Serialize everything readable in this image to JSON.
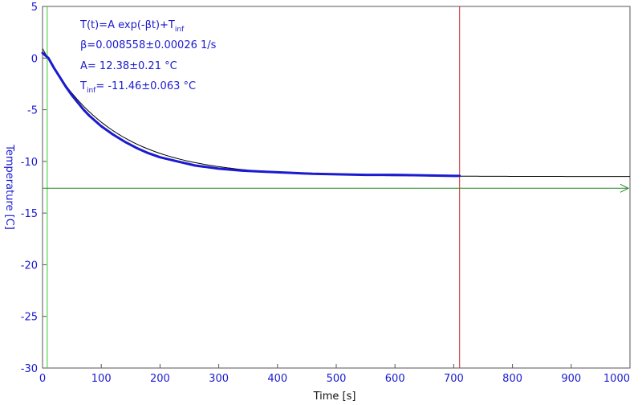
{
  "colors": {
    "data": "#1a1ad0",
    "fit": "#000000",
    "start_marker": "#33cc33",
    "end_marker": "#cc2222",
    "asymptote": "#228822",
    "frame": "#555555"
  },
  "annotations": {
    "model_main": "T(t)=A exp(-βt)+T",
    "model_sub": "inf",
    "beta": "β=0.008558±0.00026 1/s",
    "amplitude": "A= 12.38±0.21 °C",
    "tinf_main": "T",
    "tinf_sub": "inf",
    "tinf_rest": "= -11.46±0.063 °C"
  },
  "chart_data": {
    "type": "line",
    "xlabel": "Time [s]",
    "ylabel": "Temperature [C]",
    "xlim": [
      0,
      1000
    ],
    "ylim": [
      -30,
      5
    ],
    "xticks": [
      "0",
      "100",
      "200",
      "300",
      "400",
      "500",
      "600",
      "700",
      "800",
      "900",
      "1000"
    ],
    "yticks": [
      "5",
      "0",
      "-5",
      "-10",
      "-15",
      "-20",
      "-25",
      "-30"
    ],
    "grid": false,
    "series": [],
    "data_curve": {
      "x": [
        0,
        10,
        20,
        30,
        40,
        50,
        60,
        70,
        80,
        100,
        120,
        140,
        160,
        180,
        200,
        230,
        260,
        300,
        340,
        380,
        420,
        460,
        500,
        550,
        600,
        650,
        700,
        710
      ],
      "y": [
        0.5,
        0.0,
        -1.0,
        -1.9,
        -2.8,
        -3.6,
        -4.3,
        -5.0,
        -5.6,
        -6.6,
        -7.4,
        -8.1,
        -8.7,
        -9.2,
        -9.6,
        -10.0,
        -10.4,
        -10.7,
        -10.9,
        -11.0,
        -11.1,
        -11.2,
        -11.25,
        -11.3,
        -11.3,
        -11.35,
        -11.4,
        -11.4
      ]
    },
    "fit_curve": {
      "A": 12.38,
      "beta": 0.008558,
      "T_inf": -11.46,
      "x_range": [
        0,
        1000
      ]
    },
    "markers": {
      "start_x": 8,
      "end_x": 710,
      "asymptote_y": -12.6
    }
  }
}
